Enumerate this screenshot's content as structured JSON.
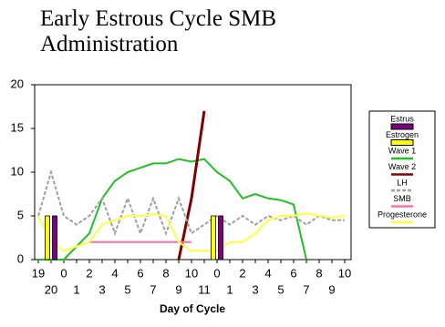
{
  "chart_data": {
    "type": "combo",
    "title": "Early Estrous Cycle SMB Administration",
    "x_label": "Day of Cycle",
    "categories": [
      "19",
      "20",
      "0",
      "1",
      "2",
      "3",
      "4",
      "5",
      "6",
      "7",
      "8",
      "9",
      "10",
      "11",
      "0",
      "1",
      "2",
      "3",
      "4",
      "5",
      "6",
      "7",
      "8",
      "9",
      "10"
    ],
    "ylim": [
      0,
      20
    ],
    "yticks": [
      0,
      5,
      10,
      15,
      20
    ],
    "series": [
      {
        "name": "Estrus",
        "type": "bar",
        "color": "#800080",
        "values": [
          null,
          5,
          null,
          null,
          null,
          null,
          null,
          null,
          null,
          null,
          null,
          null,
          null,
          null,
          5,
          null,
          null,
          null,
          null,
          null,
          null,
          null,
          null,
          null,
          null
        ]
      },
      {
        "name": "Estrogen",
        "type": "bar",
        "color": "#ffff00",
        "values": [
          null,
          5,
          null,
          null,
          null,
          null,
          null,
          null,
          null,
          null,
          null,
          null,
          null,
          null,
          5,
          null,
          null,
          null,
          null,
          null,
          null,
          null,
          null,
          null,
          null
        ]
      },
      {
        "name": "Wave 1",
        "type": "line",
        "color": "#22c022",
        "values": [
          0,
          0,
          0,
          1.5,
          3,
          7,
          9,
          10,
          10.5,
          11,
          11,
          11.5,
          11.2,
          11.5,
          10,
          9,
          7,
          7.5,
          7,
          6.8,
          6.3,
          0,
          null,
          null,
          null
        ]
      },
      {
        "name": "Wave 2",
        "type": "line",
        "color": "#800000",
        "values": [
          null,
          null,
          null,
          null,
          null,
          null,
          null,
          null,
          null,
          null,
          null,
          0,
          7,
          17,
          null,
          null,
          null,
          null,
          null,
          null,
          null,
          null,
          null,
          null,
          null
        ]
      },
      {
        "name": "LH",
        "type": "line",
        "color": "#a0a0a0",
        "dashed": true,
        "values": [
          5,
          10,
          5,
          4,
          5,
          7,
          3,
          7,
          3,
          7,
          3,
          7,
          3,
          4,
          5,
          4,
          5,
          4,
          5,
          4.5,
          5,
          4,
          5,
          4.5,
          4.5
        ]
      },
      {
        "name": "SMB",
        "type": "line",
        "color": "#ff6fa0",
        "values": [
          null,
          null,
          null,
          null,
          2,
          2,
          2,
          2,
          2,
          2,
          2,
          2,
          2,
          null,
          null,
          null,
          null,
          null,
          null,
          null,
          null,
          null,
          null,
          null,
          null
        ]
      },
      {
        "name": "Progesterone",
        "type": "line",
        "color": "#ffff40",
        "values": [
          5,
          2,
          1,
          1.5,
          2,
          4,
          4.5,
          5,
          5,
          5.2,
          5,
          2,
          1,
          1,
          1,
          2,
          2,
          3,
          4.5,
          5,
          5,
          5.3,
          5,
          4.8,
          5
        ]
      }
    ]
  }
}
